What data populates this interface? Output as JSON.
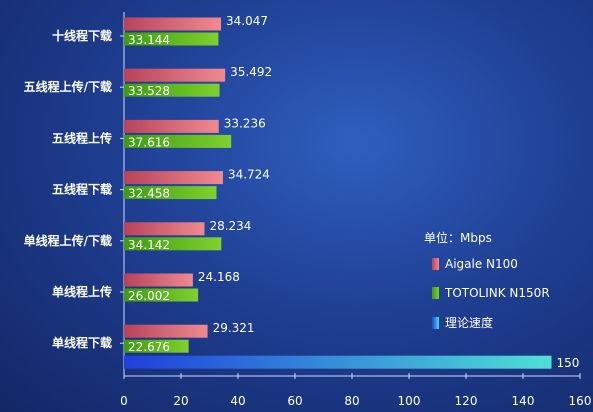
{
  "chart_data": {
    "type": "bar",
    "orientation": "horizontal",
    "categories": [
      "十线程下载",
      "五线程上传/下载",
      "五线程上传",
      "五线程下载",
      "单线程上传/下载",
      "单线程上传",
      "单线程下载"
    ],
    "series": [
      {
        "name": "Aigale N100",
        "color": "#e9697a",
        "values": [
          34.047,
          35.492,
          33.236,
          34.724,
          28.234,
          24.168,
          29.321
        ]
      },
      {
        "name": "TOTOLINK N150R",
        "color": "#5fbf1e",
        "values": [
          33.144,
          33.528,
          37.616,
          32.458,
          34.142,
          26.002,
          22.676
        ]
      },
      {
        "name": "理论速度",
        "color": "#3fc7d6",
        "values": [
          null,
          null,
          null,
          null,
          null,
          null,
          150
        ]
      }
    ],
    "data_labels": {
      "Aigale N100": [
        "34.047",
        "35.492",
        "33.236",
        "34.724",
        "28.234",
        "24.168",
        "29.321"
      ],
      "TOTOLINK N150R": [
        "33.144",
        "33.528",
        "37.616",
        "32.458",
        "34.142",
        "26.002",
        "22.676"
      ],
      "理论速度": [
        "",
        "",
        "",
        "",
        "",
        "",
        "150"
      ]
    },
    "x_ticks": [
      "0",
      "20",
      "40",
      "60",
      "80",
      "100",
      "120",
      "140",
      "160"
    ],
    "xlim": [
      0,
      160
    ],
    "unit_label": "单位：Mbps",
    "legend_position": "right"
  }
}
